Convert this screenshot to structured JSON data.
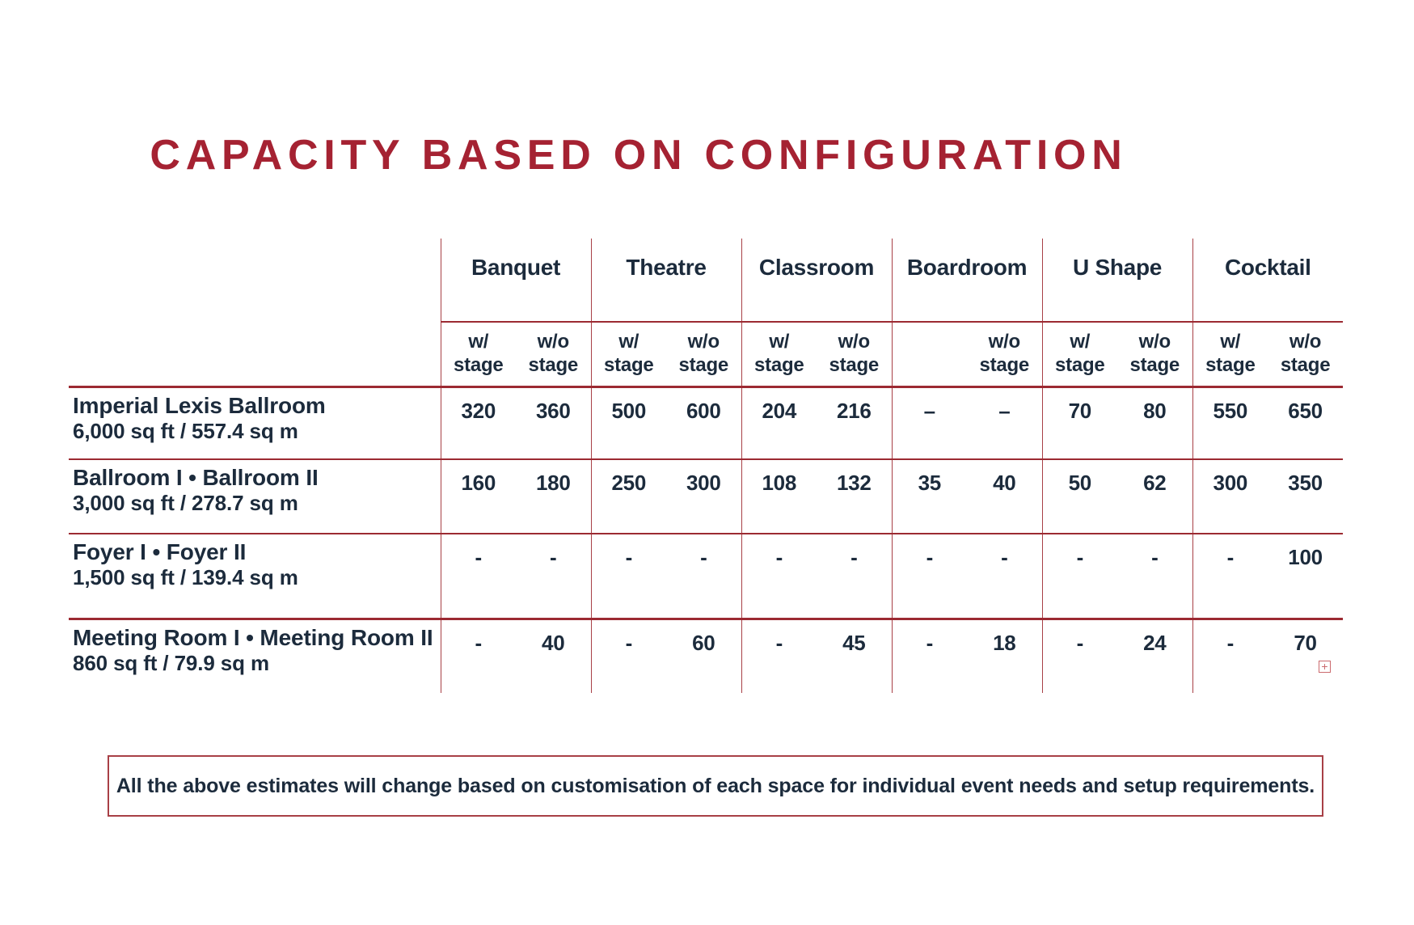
{
  "page": {
    "title": "CAPACITY BASED ON CONFIGURATION",
    "accent_red": "#a52232",
    "line_red": "#a84046",
    "navy": "#1c2b3c"
  },
  "table": {
    "groups": [
      {
        "label": "Banquet"
      },
      {
        "label": "Theatre"
      },
      {
        "label": "Classroom"
      },
      {
        "label": "Boardroom"
      },
      {
        "label": "U Shape"
      },
      {
        "label": "Cocktail"
      }
    ],
    "subheaders": [
      {
        "l1": "w/",
        "l2": "stage"
      },
      {
        "l1": "w/o",
        "l2": "stage"
      },
      {
        "l1": "w/",
        "l2": "stage"
      },
      {
        "l1": "w/o",
        "l2": "stage"
      },
      {
        "l1": "w/",
        "l2": "stage"
      },
      {
        "l1": "w/o",
        "l2": "stage"
      },
      {
        "l1": "",
        "l2": ""
      },
      {
        "l1": "w/o",
        "l2": "stage"
      },
      {
        "l1": "w/",
        "l2": "stage"
      },
      {
        "l1": "w/o",
        "l2": "stage"
      },
      {
        "l1": "w/",
        "l2": "stage"
      },
      {
        "l1": "w/o",
        "l2": "stage"
      }
    ],
    "rows": [
      {
        "name": "Imperial Lexis Ballroom",
        "size": "6,000 sq ft / 557.4 sq m",
        "values": [
          "320",
          "360",
          "500",
          "600",
          "204",
          "216",
          "–",
          "–",
          "70",
          "80",
          "550",
          "650"
        ]
      },
      {
        "name": "Ballroom I • Ballroom II",
        "size": "3,000 sq ft / 278.7 sq m",
        "values": [
          "160",
          "180",
          "250",
          "300",
          "108",
          "132",
          "35",
          "40",
          "50",
          "62",
          "300",
          "350"
        ]
      },
      {
        "name": "Foyer I • Foyer II",
        "size": "1,500 sq ft / 139.4 sq m",
        "values": [
          "-",
          "-",
          "-",
          "-",
          "-",
          "-",
          "-",
          "-",
          "-",
          "-",
          "-",
          "100"
        ]
      },
      {
        "name": "Meeting Room I • Meeting Room II",
        "size": "860 sq ft / 79.9 sq m",
        "values": [
          "-",
          "40",
          "-",
          "60",
          "-",
          "45",
          "-",
          "18",
          "-",
          "24",
          "-",
          "70"
        ]
      }
    ]
  },
  "note": "All the above estimates will change based on customisation of each space for individual event needs and setup requirements.",
  "icons": {
    "embed_plus": "+"
  }
}
